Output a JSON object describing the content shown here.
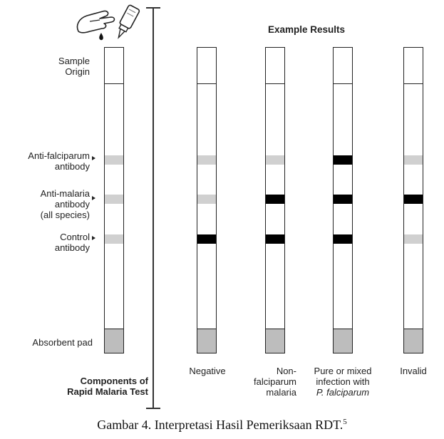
{
  "header": {
    "title": "Example Results"
  },
  "components": {
    "sample_origin_line1": "Sample",
    "sample_origin_line2": "Origin",
    "anti_falciparum_line1": "Anti-falciparum",
    "anti_falciparum_line2": "antibody",
    "anti_malaria_line1": "Anti-malaria",
    "anti_malaria_line2": "antibody",
    "anti_malaria_line3": "(all species)",
    "control_line1": "Control",
    "control_line2": "antibody",
    "absorbent_pad": "Absorbent pad",
    "footer_line1": "Components of",
    "footer_line2": "Rapid Malaria Test"
  },
  "results": [
    {
      "line1": "Negative",
      "line2": "",
      "line3": "",
      "falciparum": "faint",
      "malaria": "faint",
      "control": "dark"
    },
    {
      "line1": "Non-",
      "line2": "falciparum",
      "line3": "malaria",
      "falciparum": "faint",
      "malaria": "dark",
      "control": "dark"
    },
    {
      "line1": "Pure or mixed",
      "line2": "infection with",
      "line3": "P. falciparum",
      "falciparum": "dark",
      "malaria": "dark",
      "control": "dark"
    },
    {
      "line1": "Invalid",
      "line2": "",
      "line3": "",
      "falciparum": "faint",
      "malaria": "dark",
      "control": "faint"
    }
  ],
  "caption": {
    "text": "Gambar 4. Interpretasi Hasil Pemeriksaan RDT.",
    "superscript": "5"
  },
  "icons": {
    "dropper": "dropper-hand-icon"
  },
  "colors": {
    "faint_band": "#d0d0d0",
    "dark_band": "#000000",
    "pad": "#bdbdbd"
  }
}
